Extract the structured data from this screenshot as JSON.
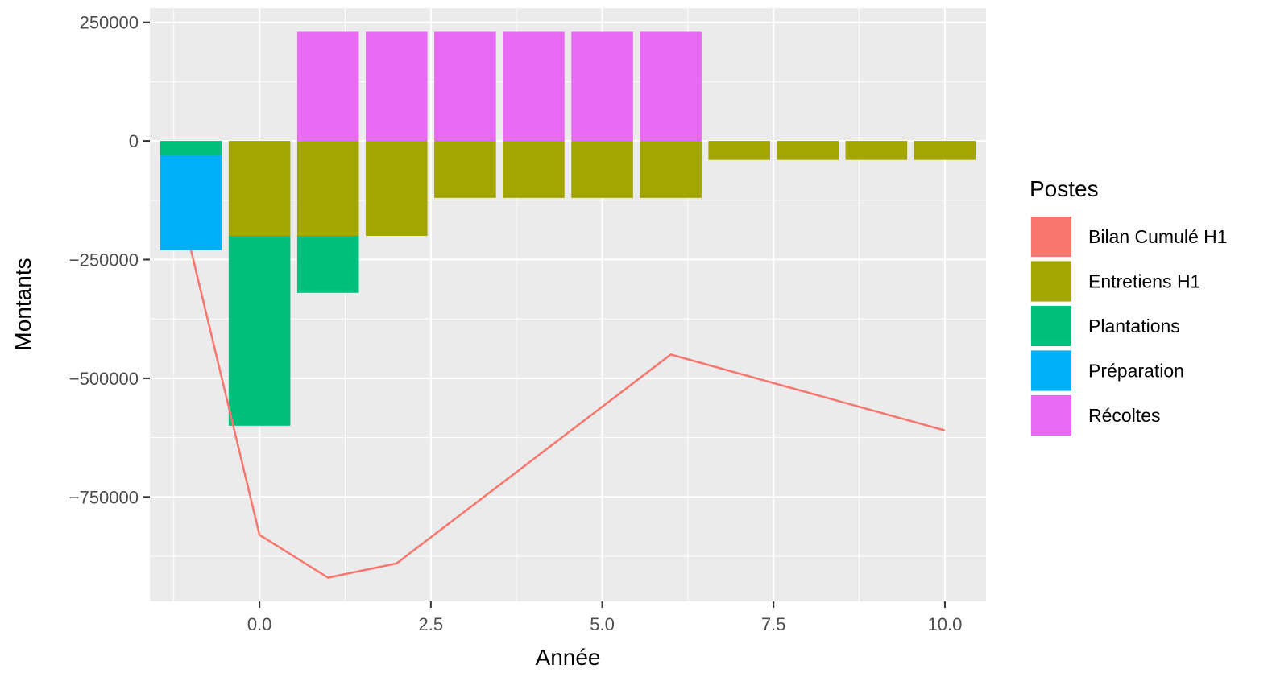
{
  "chart_data": {
    "type": "bar",
    "stacked": true,
    "xlabel": "Année",
    "ylabel": "Montants",
    "xlim": [
      -1.6,
      10.6
    ],
    "ylim": [
      -970000,
      280000
    ],
    "x_ticks": [
      0.0,
      2.5,
      5.0,
      7.5,
      10.0
    ],
    "x_tick_labels": [
      "0.0",
      "2.5",
      "5.0",
      "7.5",
      "10.0"
    ],
    "y_ticks": [
      250000,
      0,
      -250000,
      -500000,
      -750000
    ],
    "y_tick_labels": [
      "250000",
      "0",
      "−250000",
      "−500000",
      "−750000"
    ],
    "grid": true,
    "legend": {
      "title": "Postes",
      "position": "right",
      "entries": [
        {
          "name": "Bilan Cumulé H1",
          "color": "#F8766D"
        },
        {
          "name": "Entretiens H1",
          "color": "#A3A500"
        },
        {
          "name": "Plantations",
          "color": "#00BF7D"
        },
        {
          "name": "Préparation",
          "color": "#00B0F6"
        },
        {
          "name": "Récoltes",
          "color": "#E76BF3"
        }
      ]
    },
    "x": [
      -1,
      0,
      1,
      2,
      3,
      4,
      5,
      6,
      7,
      8,
      9,
      10
    ],
    "series": [
      {
        "name": "Entretiens H1",
        "color": "#A3A500",
        "values": [
          0,
          -200000,
          -200000,
          -200000,
          -120000,
          -120000,
          -120000,
          -120000,
          -40000,
          -40000,
          -40000,
          -40000
        ]
      },
      {
        "name": "Plantations",
        "color": "#00BF7D",
        "values": [
          -30000,
          -400000,
          -120000,
          0,
          0,
          0,
          0,
          0,
          0,
          0,
          0,
          0
        ]
      },
      {
        "name": "Préparation",
        "color": "#00B0F6",
        "values": [
          -200000,
          0,
          0,
          0,
          0,
          0,
          0,
          0,
          0,
          0,
          0,
          0
        ]
      },
      {
        "name": "Récoltes",
        "color": "#E76BF3",
        "values": [
          0,
          0,
          230000,
          230000,
          230000,
          230000,
          230000,
          230000,
          0,
          0,
          0,
          0
        ]
      }
    ],
    "line": {
      "name": "Bilan Cumulé H1",
      "color": "#F8766D",
      "x": [
        -1,
        0,
        1,
        2,
        6,
        10
      ],
      "y": [
        -230000,
        -830000,
        -920000,
        -890000,
        -450000,
        -610000
      ]
    }
  }
}
